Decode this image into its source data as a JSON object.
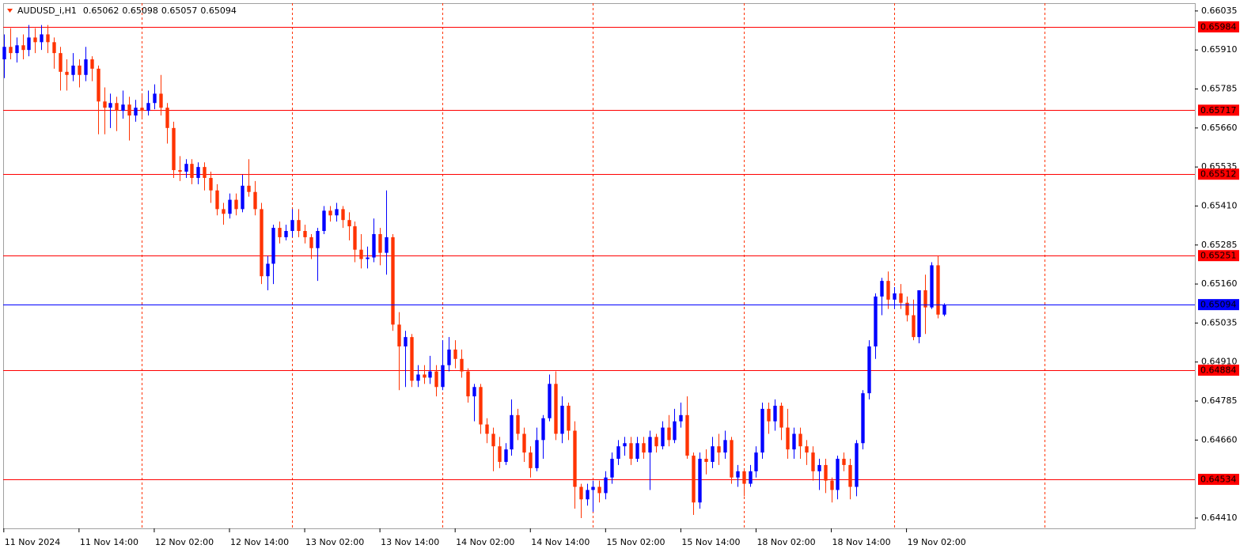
{
  "chart_data": {
    "type": "candlestick",
    "symbol": "AUDUSD_i,H1",
    "bull_color": "#0000ff",
    "bear_color": "#ff3300",
    "level_color": "#ff0000",
    "bid_color": "#0000ff",
    "separator_color": "#ff3300",
    "ylim": [
      0.64377,
      0.6606
    ],
    "yticks": [
      0.66035,
      {
        "value": 0.6591,
        "label": "0.65910"
      },
      0.65785,
      {
        "value": 0.6566,
        "label": "0.65660"
      },
      0.65535,
      {
        "value": 0.6541,
        "label": "0.65410"
      },
      0.65285,
      {
        "value": 0.6516,
        "label": "0.65160"
      },
      0.65035,
      {
        "value": 0.6491,
        "label": "0.64910"
      },
      0.64785,
      {
        "value": 0.6466,
        "label": "0.64660"
      },
      {
        "value": 0.6441,
        "label": "0.64410"
      }
    ],
    "xlim": [
      -0.1,
      190
    ],
    "xticks": [
      {
        "value": 0,
        "label": "11 Nov 2024"
      },
      {
        "value": 12,
        "label": "11 Nov 14:00"
      },
      {
        "value": 24,
        "label": "12 Nov 02:00"
      },
      {
        "value": 36,
        "label": "12 Nov 14:00"
      },
      {
        "value": 48,
        "label": "13 Nov 02:00"
      },
      {
        "value": 60,
        "label": "13 Nov 14:00"
      },
      {
        "value": 72,
        "label": "14 Nov 02:00"
      },
      {
        "value": 84,
        "label": "14 Nov 14:00"
      },
      {
        "value": 96,
        "label": "15 Nov 02:00"
      },
      {
        "value": 108,
        "label": "15 Nov 14:00"
      },
      {
        "value": 120,
        "label": "18 Nov 02:00"
      },
      {
        "value": 132,
        "label": "18 Nov 14:00"
      },
      {
        "value": 144,
        "label": "19 Nov 02:00"
      }
    ],
    "day_separators": [
      22,
      46,
      70,
      94,
      118,
      142,
      166
    ],
    "levels": [
      0.65984,
      0.65717,
      0.65512,
      0.65251,
      0.64884,
      0.64534
    ],
    "candles": [
      [
        0.6588,
        0.6596,
        0.6582,
        0.6592
      ],
      [
        0.6592,
        0.6598,
        0.6588,
        0.659
      ],
      [
        0.659,
        0.6595,
        0.6587,
        0.65925
      ],
      [
        0.65925,
        0.6596,
        0.6588,
        0.6591
      ],
      [
        0.6591,
        0.6599,
        0.6589,
        0.6595
      ],
      [
        0.6595,
        0.6598,
        0.659,
        0.65935
      ],
      [
        0.65935,
        0.6599,
        0.6591,
        0.6596
      ],
      [
        0.6596,
        0.6599,
        0.659,
        0.65935
      ],
      [
        0.65935,
        0.6595,
        0.6585,
        0.659
      ],
      [
        0.659,
        0.6592,
        0.6578,
        0.6584
      ],
      [
        0.6584,
        0.6588,
        0.6578,
        0.6583
      ],
      [
        0.6583,
        0.659,
        0.6581,
        0.6586
      ],
      [
        0.6586,
        0.6588,
        0.6579,
        0.6583
      ],
      [
        0.6583,
        0.6592,
        0.6581,
        0.6588
      ],
      [
        0.6588,
        0.6589,
        0.6581,
        0.6585
      ],
      [
        0.6585,
        0.6586,
        0.6564,
        0.65745
      ],
      [
        0.65745,
        0.6579,
        0.6564,
        0.65725
      ],
      [
        0.65725,
        0.6577,
        0.6566,
        0.6574
      ],
      [
        0.6574,
        0.6576,
        0.6565,
        0.65715
      ],
      [
        0.65715,
        0.6578,
        0.6569,
        0.65735
      ],
      [
        0.65735,
        0.6576,
        0.6562,
        0.657
      ],
      [
        0.657,
        0.6575,
        0.6568,
        0.65725
      ],
      [
        0.65725,
        0.6577,
        0.6569,
        0.65715
      ],
      [
        0.65715,
        0.6578,
        0.657,
        0.6574
      ],
      [
        0.6574,
        0.658,
        0.6572,
        0.6577
      ],
      [
        0.6577,
        0.6583,
        0.657,
        0.65725
      ],
      [
        0.65725,
        0.6574,
        0.6561,
        0.6566
      ],
      [
        0.6566,
        0.6568,
        0.655,
        0.65525
      ],
      [
        0.65525,
        0.6557,
        0.6549,
        0.6552
      ],
      [
        0.6552,
        0.6556,
        0.655,
        0.65545
      ],
      [
        0.65545,
        0.6556,
        0.6548,
        0.655
      ],
      [
        0.655,
        0.6555,
        0.6548,
        0.65535
      ],
      [
        0.65535,
        0.6555,
        0.6546,
        0.655
      ],
      [
        0.655,
        0.6552,
        0.6542,
        0.6546
      ],
      [
        0.6546,
        0.6548,
        0.6538,
        0.654
      ],
      [
        0.654,
        0.6542,
        0.6535,
        0.65385
      ],
      [
        0.65385,
        0.6545,
        0.6537,
        0.6543
      ],
      [
        0.6543,
        0.6545,
        0.6538,
        0.654
      ],
      [
        0.654,
        0.6551,
        0.6539,
        0.65475
      ],
      [
        0.65475,
        0.6556,
        0.6544,
        0.65455
      ],
      [
        0.65455,
        0.6549,
        0.6538,
        0.654
      ],
      [
        0.654,
        0.6542,
        0.6516,
        0.65185
      ],
      [
        0.65185,
        0.6525,
        0.6514,
        0.65225
      ],
      [
        0.65225,
        0.6535,
        0.6516,
        0.6534
      ],
      [
        0.6534,
        0.6536,
        0.6529,
        0.6531
      ],
      [
        0.6531,
        0.6535,
        0.653,
        0.6533
      ],
      [
        0.6533,
        0.654,
        0.6531,
        0.65365
      ],
      [
        0.65365,
        0.654,
        0.6531,
        0.6533
      ],
      [
        0.6533,
        0.6535,
        0.6529,
        0.6531
      ],
      [
        0.6531,
        0.6532,
        0.6524,
        0.65275
      ],
      [
        0.65275,
        0.6534,
        0.6517,
        0.6533
      ],
      [
        0.6533,
        0.6541,
        0.6532,
        0.65395
      ],
      [
        0.65395,
        0.6541,
        0.6536,
        0.6538
      ],
      [
        0.6538,
        0.6542,
        0.6536,
        0.654
      ],
      [
        0.654,
        0.6541,
        0.6534,
        0.65365
      ],
      [
        0.65365,
        0.6539,
        0.653,
        0.65345
      ],
      [
        0.65345,
        0.6536,
        0.6523,
        0.6527
      ],
      [
        0.6527,
        0.6532,
        0.6521,
        0.6524
      ],
      [
        0.6524,
        0.6528,
        0.6521,
        0.65245
      ],
      [
        0.65245,
        0.6537,
        0.6523,
        0.6532
      ],
      [
        0.6532,
        0.6534,
        0.6522,
        0.6526
      ],
      [
        0.6526,
        0.6546,
        0.6519,
        0.6531
      ],
      [
        0.6531,
        0.6532,
        0.6501,
        0.6503
      ],
      [
        0.6503,
        0.6507,
        0.6482,
        0.6496
      ],
      [
        0.6496,
        0.6501,
        0.6483,
        0.6499
      ],
      [
        0.6499,
        0.65,
        0.6483,
        0.6485
      ],
      [
        0.6485,
        0.649,
        0.6483,
        0.6487
      ],
      [
        0.6487,
        0.649,
        0.6484,
        0.6486
      ],
      [
        0.6486,
        0.6493,
        0.6484,
        0.6488
      ],
      [
        0.6488,
        0.649,
        0.648,
        0.6483
      ],
      [
        0.6483,
        0.6498,
        0.6482,
        0.649
      ],
      [
        0.649,
        0.6499,
        0.6488,
        0.6495
      ],
      [
        0.6495,
        0.6498,
        0.6489,
        0.6492
      ],
      [
        0.6492,
        0.6495,
        0.6486,
        0.6488
      ],
      [
        0.6488,
        0.6489,
        0.6478,
        0.648
      ],
      [
        0.648,
        0.6484,
        0.6472,
        0.6483
      ],
      [
        0.6483,
        0.6484,
        0.6468,
        0.6471
      ],
      [
        0.6471,
        0.6473,
        0.6465,
        0.6468
      ],
      [
        0.6468,
        0.647,
        0.6456,
        0.6464
      ],
      [
        0.6464,
        0.6467,
        0.6457,
        0.6459
      ],
      [
        0.6459,
        0.6465,
        0.6458,
        0.6463
      ],
      [
        0.6463,
        0.6479,
        0.6461,
        0.6474
      ],
      [
        0.6474,
        0.6476,
        0.6466,
        0.6468
      ],
      [
        0.6468,
        0.647,
        0.6459,
        0.6462
      ],
      [
        0.6462,
        0.6464,
        0.6454,
        0.6457
      ],
      [
        0.6457,
        0.647,
        0.6456,
        0.6466
      ],
      [
        0.6466,
        0.6474,
        0.646,
        0.6473
      ],
      [
        0.6473,
        0.6487,
        0.6472,
        0.6484
      ],
      [
        0.6484,
        0.6488,
        0.6466,
        0.6468
      ],
      [
        0.6468,
        0.648,
        0.6465,
        0.6477
      ],
      [
        0.6477,
        0.6478,
        0.6466,
        0.6469
      ],
      [
        0.6469,
        0.6472,
        0.6444,
        0.6451
      ],
      [
        0.6451,
        0.6452,
        0.6441,
        0.6447
      ],
      [
        0.6447,
        0.6452,
        0.6445,
        0.645
      ],
      [
        0.645,
        0.6453,
        0.6443,
        0.6451
      ],
      [
        0.6451,
        0.6453,
        0.6446,
        0.6449
      ],
      [
        0.6449,
        0.6456,
        0.6447,
        0.6454
      ],
      [
        0.6454,
        0.6462,
        0.6452,
        0.646
      ],
      [
        0.646,
        0.6466,
        0.6458,
        0.6464
      ],
      [
        0.6464,
        0.6467,
        0.6461,
        0.6465
      ],
      [
        0.6465,
        0.6467,
        0.6458,
        0.646
      ],
      [
        0.646,
        0.6467,
        0.6459,
        0.6465
      ],
      [
        0.6465,
        0.6467,
        0.646,
        0.6462
      ],
      [
        0.6462,
        0.6469,
        0.645,
        0.6467
      ],
      [
        0.6467,
        0.6468,
        0.6462,
        0.6464
      ],
      [
        0.6464,
        0.6472,
        0.6463,
        0.647
      ],
      [
        0.647,
        0.6474,
        0.6464,
        0.6466
      ],
      [
        0.6466,
        0.6476,
        0.6465,
        0.6472
      ],
      [
        0.6472,
        0.6478,
        0.647,
        0.6474
      ],
      [
        0.6474,
        0.648,
        0.646,
        0.6461
      ],
      [
        0.6461,
        0.6462,
        0.6442,
        0.6446
      ],
      [
        0.6446,
        0.6462,
        0.6444,
        0.646
      ],
      [
        0.646,
        0.6463,
        0.6455,
        0.6459
      ],
      [
        0.6459,
        0.6467,
        0.6457,
        0.6464
      ],
      [
        0.6464,
        0.6468,
        0.6458,
        0.6462
      ],
      [
        0.6462,
        0.6469,
        0.646,
        0.6466
      ],
      [
        0.6466,
        0.6467,
        0.6452,
        0.6454
      ],
      [
        0.6454,
        0.6458,
        0.6451,
        0.6456
      ],
      [
        0.6456,
        0.6457,
        0.6448,
        0.6452
      ],
      [
        0.6452,
        0.6458,
        0.6451,
        0.6456
      ],
      [
        0.6456,
        0.6464,
        0.6454,
        0.6462
      ],
      [
        0.6462,
        0.6478,
        0.646,
        0.6476
      ],
      [
        0.6476,
        0.6478,
        0.6468,
        0.6472
      ],
      [
        0.6472,
        0.6479,
        0.6469,
        0.6477
      ],
      [
        0.6477,
        0.6478,
        0.6466,
        0.647
      ],
      [
        0.647,
        0.6476,
        0.646,
        0.6463
      ],
      [
        0.6463,
        0.647,
        0.646,
        0.6468
      ],
      [
        0.6468,
        0.647,
        0.646,
        0.6464
      ],
      [
        0.6464,
        0.6466,
        0.6458,
        0.6462
      ],
      [
        0.6462,
        0.6464,
        0.6453,
        0.6456
      ],
      [
        0.6456,
        0.646,
        0.645,
        0.6458
      ],
      [
        0.6458,
        0.646,
        0.6449,
        0.6453
      ],
      [
        0.6453,
        0.6454,
        0.6446,
        0.645
      ],
      [
        0.645,
        0.6461,
        0.6447,
        0.646
      ],
      [
        0.646,
        0.6462,
        0.6456,
        0.6458
      ],
      [
        0.6458,
        0.646,
        0.6447,
        0.6451
      ],
      [
        0.6451,
        0.6466,
        0.6448,
        0.6465
      ],
      [
        0.6465,
        0.6482,
        0.6463,
        0.6481
      ],
      [
        0.6481,
        0.6498,
        0.6479,
        0.6496
      ],
      [
        0.6496,
        0.6513,
        0.6492,
        0.6512
      ],
      [
        0.6512,
        0.6518,
        0.6506,
        0.6517
      ],
      [
        0.6517,
        0.652,
        0.6508,
        0.6511
      ],
      [
        0.6511,
        0.6515,
        0.6508,
        0.6513
      ],
      [
        0.6513,
        0.6516,
        0.6508,
        0.651
      ],
      [
        0.651,
        0.6512,
        0.6504,
        0.6506
      ],
      [
        0.6506,
        0.6511,
        0.6498,
        0.6499
      ],
      [
        0.6499,
        0.6514,
        0.6497,
        0.6514
      ],
      [
        0.6514,
        0.6519,
        0.65,
        0.65085
      ],
      [
        0.65085,
        0.6523,
        0.6508,
        0.6522
      ],
      [
        0.6522,
        0.6525,
        0.6505,
        0.65062
      ],
      [
        0.65062,
        0.65098,
        0.65057,
        0.65094
      ]
    ]
  }
}
